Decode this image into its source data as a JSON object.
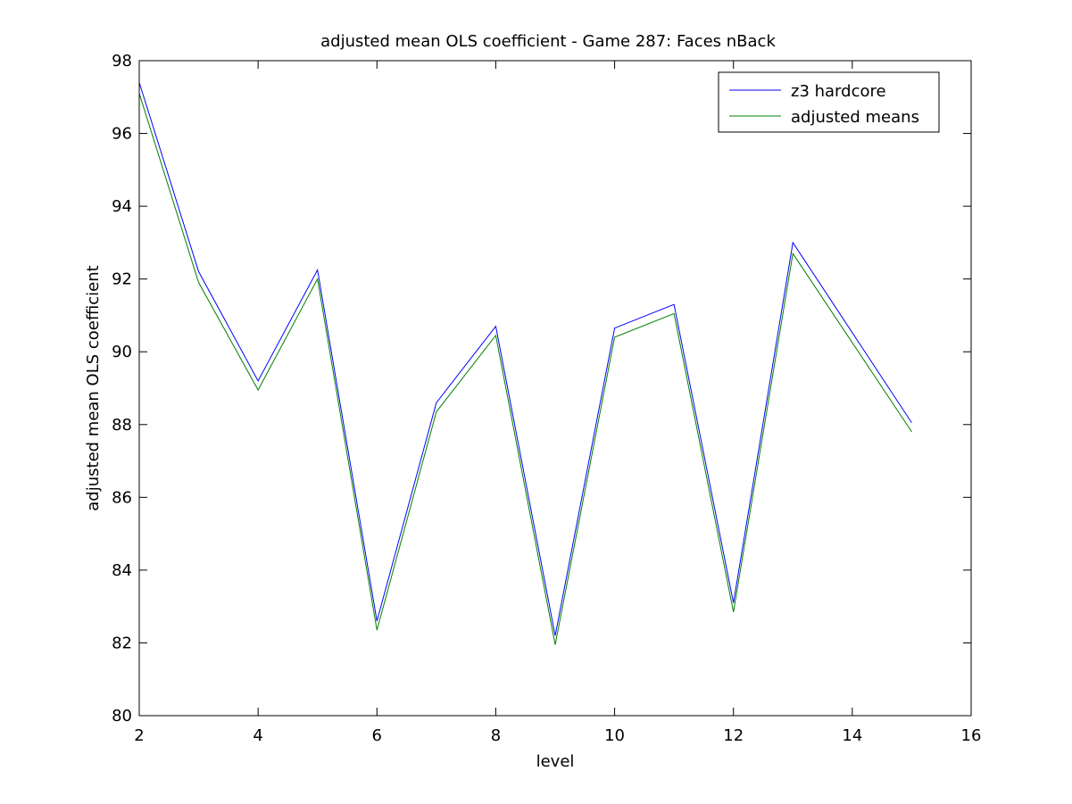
{
  "chart_data": {
    "type": "line",
    "title": "adjusted mean OLS coefficient - Game 287: Faces nBack",
    "xlabel": "level",
    "ylabel": "adjusted mean OLS coefficient",
    "xlim": [
      2,
      16
    ],
    "ylim": [
      80,
      98
    ],
    "xticks": [
      2,
      4,
      6,
      8,
      10,
      12,
      14,
      16
    ],
    "yticks": [
      80,
      82,
      84,
      86,
      88,
      90,
      92,
      94,
      96,
      98
    ],
    "grid": false,
    "legend_position": "top-right",
    "x": [
      2,
      3,
      4,
      5,
      6,
      7,
      8,
      9,
      10,
      11,
      12,
      13,
      15
    ],
    "series": [
      {
        "name": "z3 hardcore",
        "color": "#0000ff",
        "values": [
          97.4,
          92.2,
          89.2,
          92.25,
          82.6,
          88.6,
          90.7,
          82.2,
          90.65,
          91.3,
          83.1,
          93.0,
          88.05
        ]
      },
      {
        "name": "adjusted means",
        "color": "#008000",
        "values": [
          97.1,
          91.9,
          88.95,
          92.0,
          82.35,
          88.35,
          90.45,
          81.95,
          90.4,
          91.05,
          82.85,
          92.7,
          87.8
        ]
      }
    ]
  }
}
